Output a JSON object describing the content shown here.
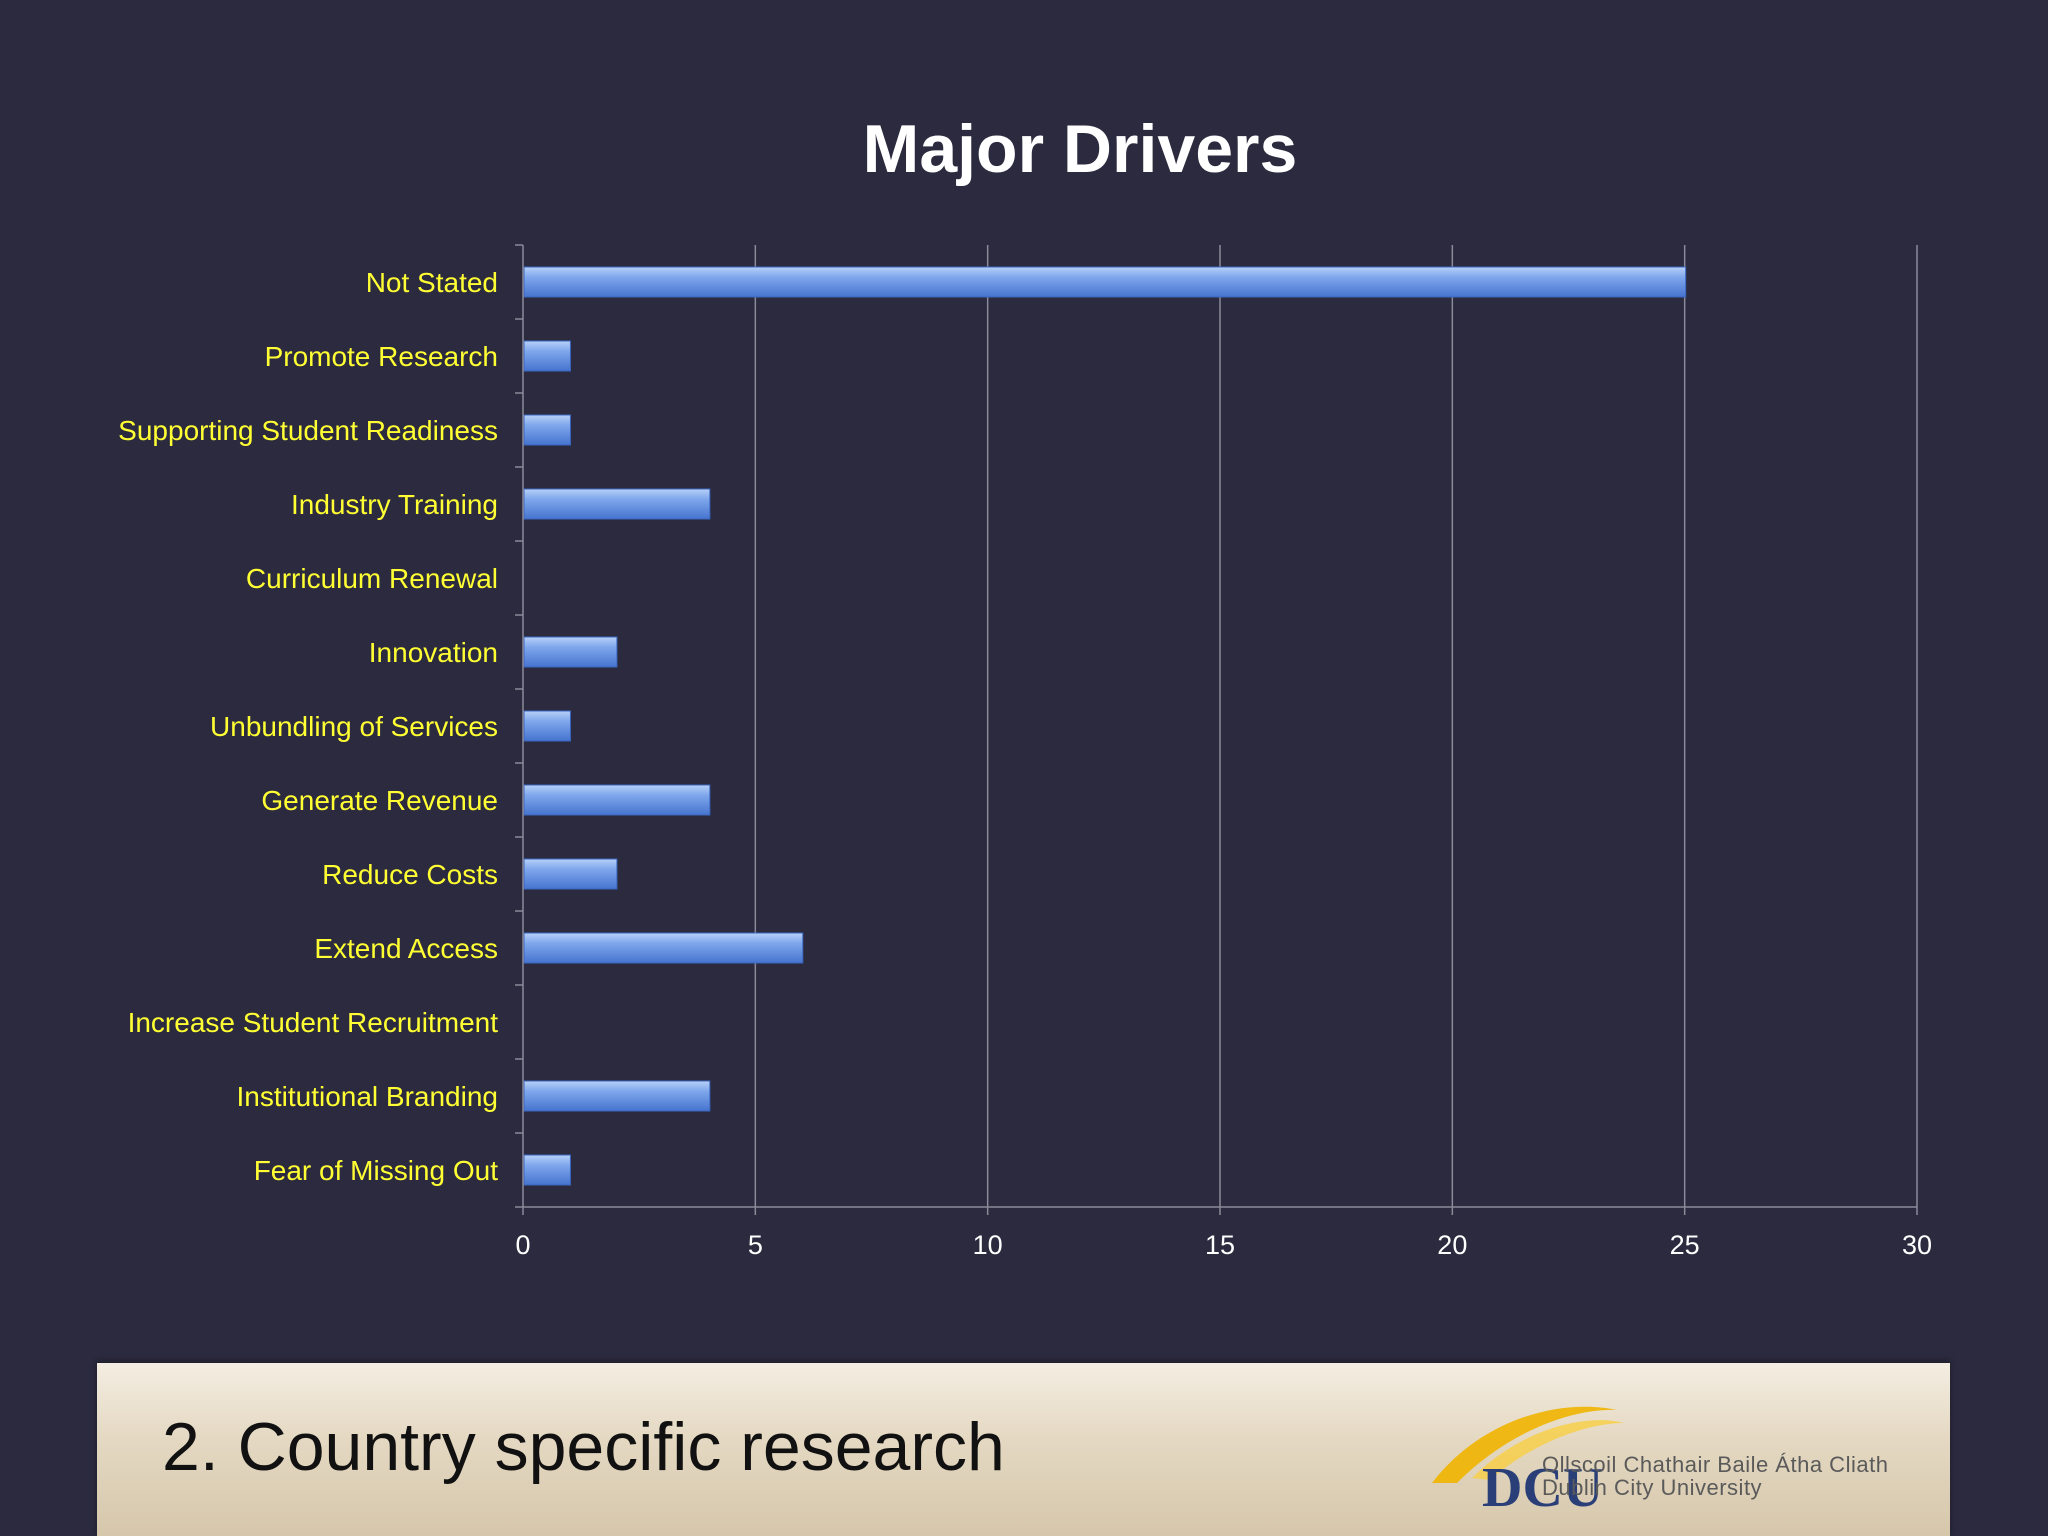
{
  "chart_data": {
    "type": "bar",
    "orientation": "horizontal",
    "title": "Major Drivers",
    "categories": [
      "Not Stated",
      "Promote Research",
      "Supporting Student Readiness",
      "Industry Training",
      "Curriculum Renewal",
      "Innovation",
      "Unbundling of Services",
      "Generate Revenue",
      "Reduce Costs",
      "Extend Access",
      "Increase Student Recruitment",
      "Institutional Branding",
      "Fear of Missing Out"
    ],
    "values": [
      25,
      1,
      1,
      4,
      0,
      2,
      1,
      4,
      2,
      6,
      0,
      4,
      1
    ],
    "xlim": [
      0,
      30
    ],
    "xticks": [
      "0",
      "5",
      "10",
      "15",
      "20",
      "25",
      "30"
    ],
    "xlabel": "",
    "ylabel": "",
    "grid": true,
    "legend": "none",
    "colors": {
      "bar": "#6f9ae8",
      "bar_light": "#a9c6f5",
      "bar_dark": "#3d6bc6",
      "category_text": "#ffff33",
      "background": "#2b2a3e",
      "grid": "#8a8a9a"
    }
  },
  "footer": {
    "title": "2. Country specific research",
    "logo": {
      "name": "DCU",
      "line1": "Ollscoil Chathair Baile Átha Cliath",
      "line2": "Dublin City University"
    }
  }
}
